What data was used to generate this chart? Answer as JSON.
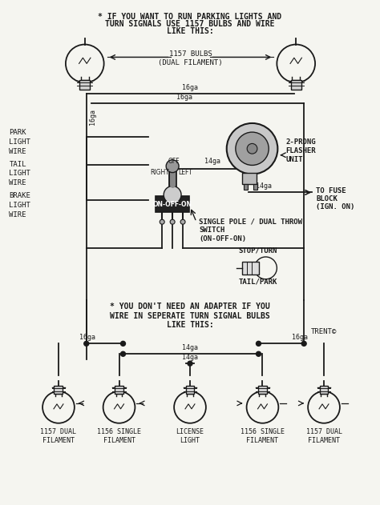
{
  "bg_color": "#f5f5f0",
  "line_color": "#1a1a1a",
  "title1": "* IF YOU WANT TO RUN PARKING LIGHTS AND",
  "title2": "TURN SIGNALS USE 1157 BULBS AND WIRE",
  "title3": "LIKE THIS:",
  "bulbs_label1": "1157 BULBS",
  "bulbs_label2": "(DUAL FILAMENT)",
  "left_labels": [
    "PARK\nLIGHT\nWIRE",
    "TAIL\nLIGHT\nWIRE",
    "BRAKE\nLIGHT\nWIRE"
  ],
  "switch_text": "RIGHT   OFF   LEFT",
  "switch_body_text": "ON-OFF-ON",
  "flasher_label1": "2-PRONG",
  "flasher_label2": "FLASHER",
  "flasher_label3": "UNIT",
  "fuse_label1": "TO FUSE",
  "fuse_label2": "BLOCK",
  "fuse_label3": "(IGN. ON)",
  "spdt1": "SINGLE POLE / DUAL THROW",
  "spdt2": "SWITCH",
  "spdt3": "(ON-OFF-ON)",
  "stop_turn": "STOP/TURN",
  "tail_park": "TAIL/PARK",
  "adapter1": "* YOU DON'T NEED AN ADAPTER IF YOU",
  "adapter2": "WIRE IN SEPERATE TURN SIGNAL BULBS",
  "adapter3": "LIKE THIS:",
  "trent": "TRENT©",
  "bottom_labels": [
    "1157 DUAL\nFILAMENT",
    "1156 SINGLE\nFILAMENT",
    "LICENSE\nLIGHT",
    "1156 SINGLE\nFILAMENT",
    "1157 DUAL\nFILAMENT"
  ],
  "wire16_1": "16ga",
  "wire16_2": "16ga",
  "wire16ga_left": "16ga",
  "wire14_1": "14ga",
  "wire14_2": "14ga",
  "wire16_bot1": "16ga",
  "wire16_bot2": "16ga",
  "wire14_bot1": "14ga",
  "wire14_bot2": "14ga"
}
